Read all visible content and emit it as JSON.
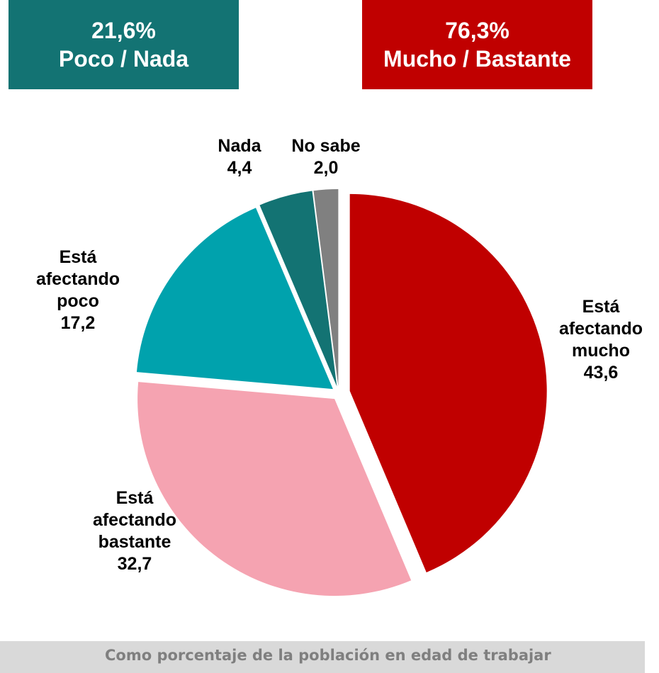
{
  "chart_data": {
    "type": "pie",
    "summary": [
      {
        "name": "Poco / Nada",
        "value": 21.6,
        "value_label": "21,6%",
        "color": "#137373"
      },
      {
        "name": "Mucho / Bastante",
        "value": 76.3,
        "value_label": "76,3%",
        "color": "#c00000"
      }
    ],
    "categories": [
      "Está afectando mucho",
      "Está afectando bastante",
      "Está afectando poco",
      "Nada",
      "No sabe"
    ],
    "values": [
      43.6,
      32.7,
      17.2,
      4.4,
      2.0
    ],
    "value_labels": [
      "43,6",
      "32,7",
      "17,2",
      "4,4",
      "2,0"
    ],
    "colors": [
      "#c00000",
      "#f5a3b1",
      "#00a2ad",
      "#137373",
      "#808080"
    ],
    "note": "Como porcentaje de la población en edad de trabajar"
  }
}
